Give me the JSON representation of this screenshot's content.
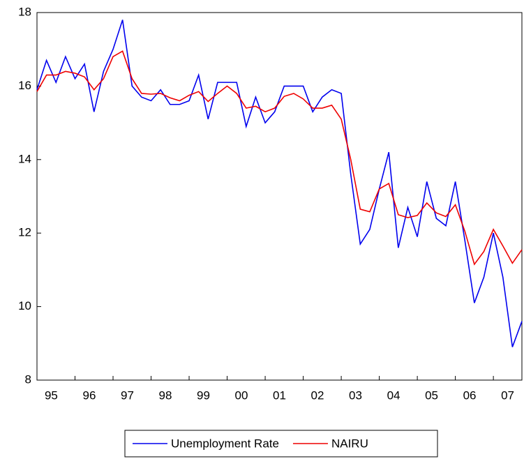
{
  "chart_data": {
    "type": "line",
    "categories": [
      null,
      "95",
      null,
      null,
      null,
      "96",
      null,
      null,
      null,
      "97",
      null,
      null,
      null,
      "98",
      null,
      null,
      null,
      "99",
      null,
      null,
      null,
      "00",
      null,
      null,
      null,
      "01",
      null,
      null,
      null,
      "02",
      null,
      null,
      null,
      "03",
      null,
      null,
      null,
      "04",
      null,
      null,
      null,
      "05",
      null,
      null,
      null,
      "06",
      null,
      null,
      null,
      "07",
      null,
      null
    ],
    "series": [
      {
        "name": "Unemployment Rate",
        "color": "#0000ee",
        "values": [
          15.9,
          16.7,
          16.1,
          16.8,
          16.2,
          16.6,
          15.3,
          16.4,
          17.0,
          17.8,
          16.0,
          15.7,
          15.6,
          15.9,
          15.5,
          15.5,
          15.6,
          16.3,
          15.1,
          16.1,
          16.1,
          16.1,
          14.9,
          15.7,
          15.0,
          15.3,
          16.0,
          16.0,
          16.0,
          15.3,
          15.7,
          15.9,
          15.8,
          13.6,
          11.7,
          12.1,
          13.2,
          14.2,
          11.6,
          12.7,
          11.9,
          13.4,
          12.4,
          12.2,
          13.4,
          11.8,
          10.1,
          10.8,
          12.0,
          10.8,
          8.9,
          9.6
        ]
      },
      {
        "name": "NAIRU",
        "color": "#ee0000",
        "values": [
          15.85,
          16.3,
          16.3,
          16.4,
          16.35,
          16.25,
          15.9,
          16.2,
          16.8,
          16.95,
          16.2,
          15.8,
          15.78,
          15.8,
          15.68,
          15.6,
          15.75,
          15.85,
          15.58,
          15.8,
          16.0,
          15.8,
          15.4,
          15.45,
          15.3,
          15.4,
          15.72,
          15.8,
          15.65,
          15.4,
          15.4,
          15.48,
          15.1,
          14.0,
          12.65,
          12.58,
          13.2,
          13.35,
          12.5,
          12.42,
          12.48,
          12.82,
          12.55,
          12.45,
          12.77,
          12.05,
          11.15,
          11.5,
          12.1,
          11.65,
          11.18,
          11.55
        ]
      }
    ],
    "ylim": [
      8,
      18
    ],
    "yticks": [
      8,
      10,
      12,
      14,
      16,
      18
    ]
  }
}
